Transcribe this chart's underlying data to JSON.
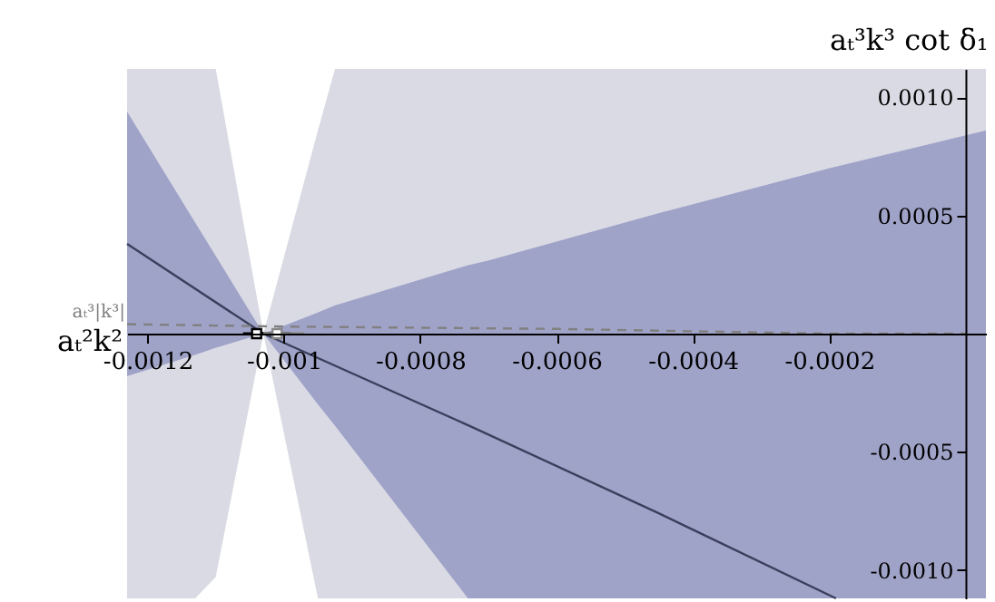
{
  "chart_data": {
    "type": "line",
    "xlabel": "aₜ²k²",
    "ylabel": "aₜ³k³ cot δ₁",
    "xlim": [
      -0.00123,
      3e-05
    ],
    "ylim": [
      -0.00112,
      0.00112
    ],
    "xticks": [
      -0.0012,
      -0.001,
      -0.0008,
      -0.0006,
      -0.0004,
      -0.0002
    ],
    "yticks": [
      {
        "value": -0.001,
        "label": "-0.0010"
      },
      {
        "value": -0.0005,
        "label": "-0.0005"
      },
      {
        "value": 0.0005,
        "label": "0.0005"
      },
      {
        "value": 0.001,
        "label": "0.0010"
      }
    ],
    "grid": false,
    "legend": false,
    "series": [
      {
        "type": "line",
        "color": "#d9dae3",
        "x": [
          -0.00123,
          -0.00113,
          -0.0011,
          -0.00103,
          -0.00095,
          -0.000925,
          -0.00073,
          -0.0007,
          -0.00045,
          -0.0002,
          3e-05
        ],
        "values": [
          null,
          null,
          null,
          null,
          null,
          null,
          null,
          null,
          null,
          null,
          null
        ],
        "lower": [
          0.00094,
          0.00047,
          0.00033,
          0,
          9e-05,
          0.00012,
          0.00029,
          0.00031,
          0.00051,
          0.0007,
          0.00086
        ],
        "upper": [
          0.00112,
          0.00112,
          0.00112,
          0,
          0.00086,
          0.00112,
          0.00112,
          0.00112,
          0.00112,
          0.00112,
          0.00112
        ]
      },
      {
        "type": "line",
        "color": "#d9dae3",
        "x": [
          -0.00123,
          -0.00113,
          -0.0011,
          -0.00103,
          -0.00095,
          -0.000925,
          -0.00073
        ],
        "values": [
          null,
          null,
          null,
          null,
          null,
          null,
          null
        ],
        "lower": [
          -0.00112,
          -0.00112,
          -0.00103,
          0,
          -0.00112,
          -0.00112,
          -0.00112
        ],
        "upper": [
          -0.00018,
          -9e-05,
          -6e-05,
          0,
          -0.0003,
          -0.00039,
          -0.00112
        ]
      },
      {
        "type": "line",
        "color": "#a0a3c8",
        "x": [
          -0.00123,
          -0.00113,
          -0.0011,
          -0.00103,
          -0.00095,
          -0.000925,
          -0.00073,
          -0.0007,
          -0.00045,
          -0.0002,
          3e-05
        ],
        "values": [
          null,
          null,
          null,
          null,
          null,
          null,
          null,
          null,
          null,
          null,
          null
        ],
        "lower": [
          -0.00018,
          -9e-05,
          -6e-05,
          0,
          -0.0003,
          -0.00039,
          -0.00112,
          -0.00112,
          -0.00112,
          -0.00112,
          -0.00112
        ],
        "upper": [
          0.00094,
          0.00047,
          0.00033,
          0,
          9e-05,
          0.00012,
          0.00029,
          0.00031,
          0.00051,
          0.0007,
          0.00086
        ]
      },
      {
        "type": "line",
        "color": "#3a3f5c",
        "line_style": "solid",
        "x": [
          -0.00123,
          -0.00103,
          -0.00072,
          -0.00045,
          -0.00019
        ],
        "values": [
          0.00038,
          0,
          -0.0004,
          -0.00076,
          -0.00112
        ]
      },
      {
        "type": "line",
        "name": "aₜ³|k³|",
        "color": "#808080",
        "line_style": "dashed",
        "x": [
          -0.00123,
          -0.001,
          -0.0006,
          -0.0002,
          0
        ],
        "values": [
          4e-05,
          3e-05,
          2e-05,
          0,
          0
        ]
      },
      {
        "type": "scatter",
        "color": "#000000",
        "x": [
          -0.00104
        ],
        "values": [
          0
        ],
        "xerrors": [
          [
            -0.00106,
            -0.00099
          ]
        ]
      },
      {
        "type": "scatter",
        "color": "#888888",
        "x": [
          -0.00101
        ],
        "values": [
          0
        ],
        "xerrors": [
          [
            -0.00103,
            -0.00097
          ]
        ]
      }
    ]
  }
}
